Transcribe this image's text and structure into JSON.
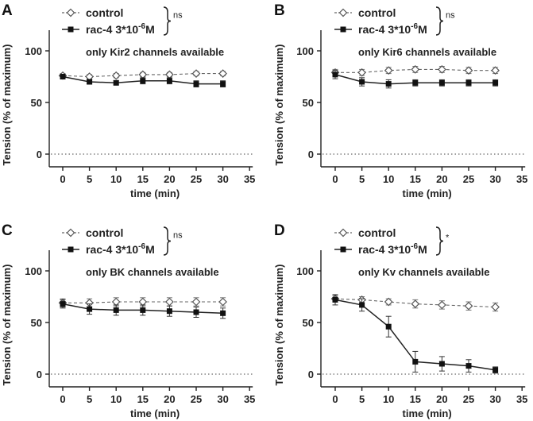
{
  "chart_data": [
    {
      "panel": "A",
      "type": "line",
      "note": "only Kir2 channels available",
      "ylabel": "Tension (% of maximum)",
      "xlabel": "time (min)",
      "x_ticks": [
        0,
        5,
        10,
        15,
        20,
        25,
        30,
        35
      ],
      "y_ticks": [
        0,
        50,
        100
      ],
      "xlim": [
        -2,
        35
      ],
      "ylim": [
        -10,
        125
      ],
      "significance": "ns",
      "series": [
        {
          "name": "control",
          "style": "dashed-open-diamond",
          "x": [
            0,
            5,
            10,
            15,
            20,
            25,
            30
          ],
          "y": [
            76,
            75,
            76,
            77,
            77,
            78,
            78
          ],
          "err": [
            2,
            2,
            2,
            2,
            2,
            2,
            2
          ]
        },
        {
          "name": "rac-4 3*10",
          "name_sup": "-6",
          "name_suffix": "M",
          "style": "solid-filled-square",
          "x": [
            0,
            5,
            10,
            15,
            20,
            25,
            30
          ],
          "y": [
            75,
            70,
            69,
            71,
            71,
            68,
            68
          ],
          "err": [
            2,
            2,
            2,
            3,
            3,
            3,
            3
          ]
        }
      ]
    },
    {
      "panel": "B",
      "type": "line",
      "note": "only Kir6 channels available",
      "ylabel": "Tension (% of maximum)",
      "xlabel": "time (min)",
      "x_ticks": [
        0,
        5,
        10,
        15,
        20,
        25,
        30,
        35
      ],
      "y_ticks": [
        0,
        50,
        100
      ],
      "xlim": [
        -2,
        35
      ],
      "ylim": [
        -10,
        125
      ],
      "significance": "ns",
      "series": [
        {
          "name": "control",
          "style": "dashed-open-diamond",
          "x": [
            0,
            5,
            10,
            15,
            20,
            25,
            30
          ],
          "y": [
            79,
            79,
            81,
            82,
            82,
            81,
            81
          ],
          "err": [
            3,
            3,
            3,
            3,
            3,
            3,
            3
          ]
        },
        {
          "name": "rac-4 3*10",
          "name_sup": "-6",
          "name_suffix": "M",
          "style": "solid-filled-square",
          "x": [
            0,
            5,
            10,
            15,
            20,
            25,
            30
          ],
          "y": [
            77,
            70,
            68,
            69,
            69,
            69,
            69
          ],
          "err": [
            4,
            4,
            4,
            3,
            3,
            3,
            3
          ]
        }
      ]
    },
    {
      "panel": "C",
      "type": "line",
      "note": "only BK channels available",
      "ylabel": "Tension (% of maximum)",
      "xlabel": "time (min)",
      "x_ticks": [
        0,
        5,
        10,
        15,
        20,
        25,
        30,
        35
      ],
      "y_ticks": [
        0,
        50,
        100
      ],
      "xlim": [
        -2,
        35
      ],
      "ylim": [
        -10,
        125
      ],
      "significance": "ns",
      "series": [
        {
          "name": "control",
          "style": "dashed-open-diamond",
          "x": [
            0,
            5,
            10,
            15,
            20,
            25,
            30
          ],
          "y": [
            69,
            69,
            70,
            70,
            70,
            70,
            70
          ],
          "err": [
            4,
            4,
            4,
            4,
            4,
            4,
            4
          ]
        },
        {
          "name": "rac-4 3*10",
          "name_sup": "-6",
          "name_suffix": "M",
          "style": "solid-filled-square",
          "x": [
            0,
            5,
            10,
            15,
            20,
            25,
            30
          ],
          "y": [
            68,
            63,
            62,
            62,
            61,
            60,
            59
          ],
          "err": [
            4,
            5,
            5,
            5,
            5,
            5,
            5
          ]
        }
      ]
    },
    {
      "panel": "D",
      "type": "line",
      "note": "only Kv channels available",
      "ylabel": "Tension (% of maximum)",
      "xlabel": "time (min)",
      "x_ticks": [
        0,
        5,
        10,
        15,
        20,
        25,
        30,
        35
      ],
      "y_ticks": [
        0,
        50,
        100
      ],
      "xlim": [
        -2,
        35
      ],
      "ylim": [
        -10,
        125
      ],
      "significance": "*",
      "series": [
        {
          "name": "control",
          "style": "dashed-open-diamond",
          "x": [
            0,
            5,
            10,
            15,
            20,
            25,
            30
          ],
          "y": [
            73,
            72,
            70,
            68,
            67,
            66,
            65
          ],
          "err": [
            3,
            3,
            3,
            4,
            4,
            4,
            4
          ]
        },
        {
          "name": "rac-4 3*10",
          "name_sup": "-6",
          "name_suffix": "M",
          "style": "solid-filled-square",
          "x": [
            0,
            5,
            10,
            15,
            20,
            25,
            30
          ],
          "y": [
            72,
            67,
            46,
            12,
            10,
            8,
            4
          ],
          "err": [
            5,
            6,
            10,
            10,
            7,
            6,
            3
          ]
        }
      ]
    }
  ]
}
